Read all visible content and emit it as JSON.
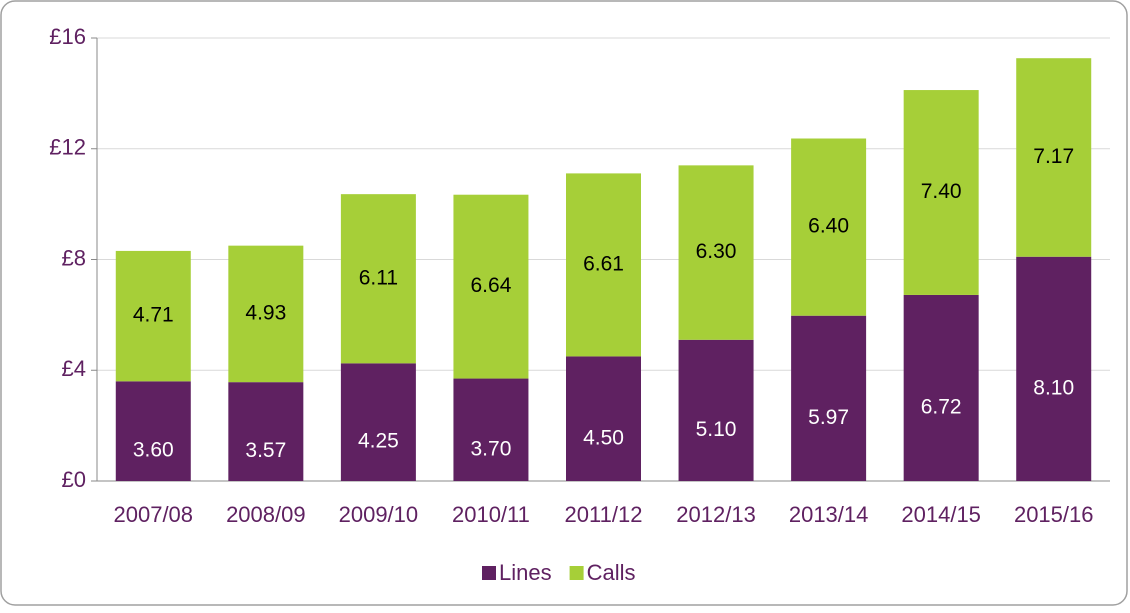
{
  "chart_data": {
    "type": "stacked_bar",
    "categories": [
      "2007/08",
      "2008/09",
      "2009/10",
      "2010/11",
      "2011/12",
      "2012/13",
      "2013/14",
      "2014/15",
      "2015/16"
    ],
    "series": [
      {
        "name": "Lines",
        "color": "#5f2161",
        "values": [
          3.6,
          3.57,
          4.25,
          3.7,
          4.5,
          5.1,
          5.97,
          6.72,
          8.1
        ],
        "value_labels": [
          "3.60",
          "3.57",
          "4.25",
          "3.70",
          "4.50",
          "5.10",
          "5.97",
          "6.72",
          "8.10"
        ]
      },
      {
        "name": "Calls",
        "color": "#a6cf38",
        "values": [
          4.71,
          4.93,
          6.11,
          6.64,
          6.61,
          6.3,
          6.4,
          7.4,
          7.17
        ],
        "value_labels": [
          "4.71",
          "4.93",
          "6.11",
          "6.64",
          "6.61",
          "6.30",
          "6.40",
          "7.40",
          "7.17"
        ]
      }
    ],
    "ylim": [
      0,
      16
    ],
    "yticks": [
      {
        "value": 0,
        "label": "£0"
      },
      {
        "value": 4,
        "label": "£4"
      },
      {
        "value": 8,
        "label": "£8"
      },
      {
        "value": 12,
        "label": "£12"
      },
      {
        "value": 16,
        "label": "£16"
      }
    ],
    "grid": true,
    "legend": "bottom"
  }
}
